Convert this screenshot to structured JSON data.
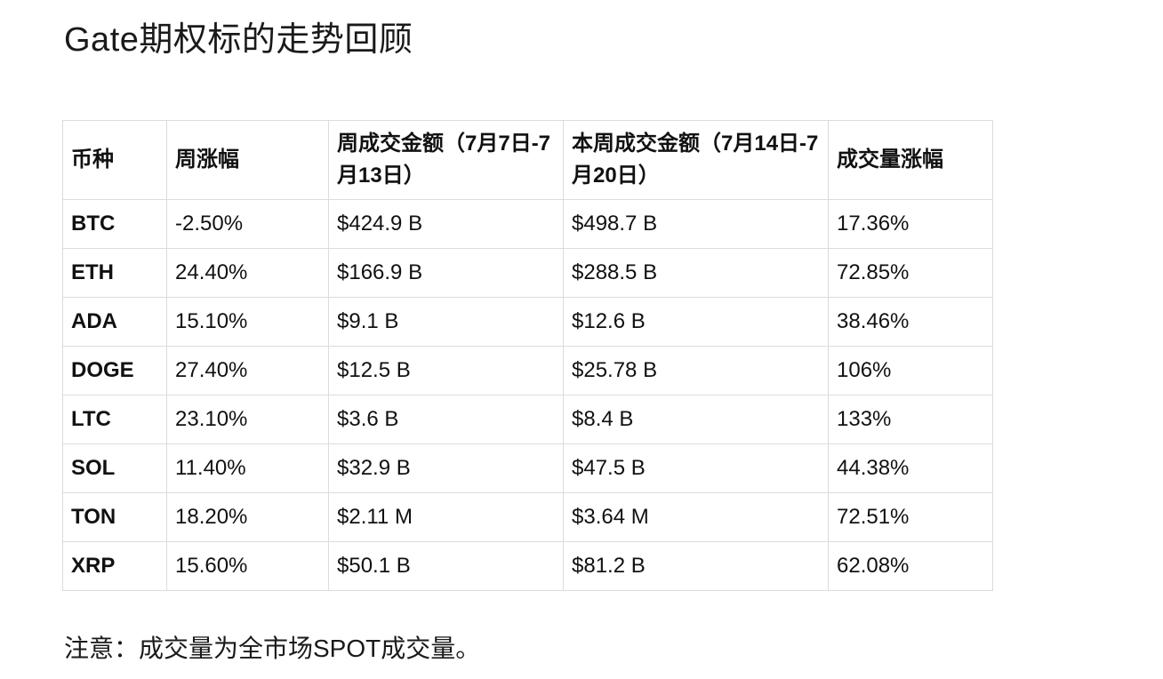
{
  "page": {
    "title": "Gate期权标的走势回顾",
    "note": "注意：成交量为全市场SPOT成交量。"
  },
  "table": {
    "headers": [
      "币种",
      "周涨幅",
      "周成交金额（7月7日-7月13日）",
      "本周成交金额（7月14日-7月20日）",
      "成交量涨幅"
    ],
    "rows": [
      [
        "BTC",
        "-2.50%",
        "$424.9 B",
        "$498.7 B",
        "17.36%"
      ],
      [
        "ETH",
        "24.40%",
        "$166.9 B",
        "$288.5 B",
        "72.85%"
      ],
      [
        "ADA",
        "15.10%",
        "$9.1 B",
        "$12.6 B",
        "38.46%"
      ],
      [
        "DOGE",
        "27.40%",
        "$12.5 B",
        "$25.78 B",
        "106%"
      ],
      [
        "LTC",
        "23.10%",
        "$3.6 B",
        "$8.4 B",
        "133%"
      ],
      [
        "SOL",
        "11.40%",
        "$32.9 B",
        "$47.5 B",
        "44.38%"
      ],
      [
        "TON",
        "18.20%",
        "$2.11 M",
        "$3.64 M",
        "72.51%"
      ],
      [
        "XRP",
        "15.60%",
        "$50.1 B",
        "$81.2 B",
        "62.08%"
      ]
    ]
  }
}
